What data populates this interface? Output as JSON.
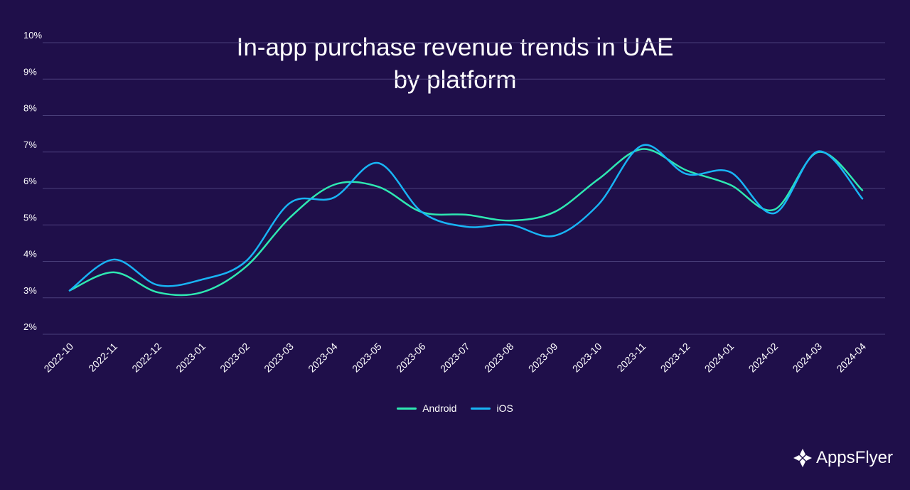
{
  "chart_data": {
    "type": "line",
    "title": [
      "In-app purchase revenue trends in UAE",
      "by platform"
    ],
    "xlabel": "",
    "ylabel": "",
    "categories": [
      "2022-10",
      "2022-11",
      "2022-12",
      "2023-01",
      "2023-02",
      "2023-03",
      "2023-04",
      "2023-05",
      "2023-06",
      "2023-07",
      "2023-08",
      "2023-09",
      "2023-10",
      "2023-11",
      "2023-12",
      "2024-01",
      "2024-02",
      "2024-03",
      "2024-04"
    ],
    "ylim": [
      2,
      10
    ],
    "yticks": [
      2,
      3,
      4,
      5,
      6,
      7,
      8,
      9,
      10
    ],
    "ytick_suffix": "%",
    "grid": true,
    "legend_position": "bottom-center",
    "series": [
      {
        "name": "Android",
        "color": "#2ee8b2",
        "values": [
          3.2,
          3.7,
          3.15,
          3.15,
          3.85,
          5.2,
          6.1,
          6.05,
          5.35,
          5.28,
          5.12,
          5.35,
          6.25,
          7.08,
          6.5,
          6.1,
          5.42,
          7.0,
          5.95
        ]
      },
      {
        "name": "iOS",
        "color": "#18b4f5",
        "values": [
          3.2,
          4.05,
          3.35,
          3.5,
          4.0,
          5.6,
          5.75,
          6.7,
          5.35,
          4.95,
          5.0,
          4.7,
          5.55,
          7.18,
          6.4,
          6.45,
          5.32,
          7.02,
          5.72
        ]
      }
    ]
  },
  "legend": {
    "android": "Android",
    "ios": "iOS"
  },
  "brand": {
    "name": "AppsFlyer",
    "logo_icon": "appsflyer-bird-icon"
  }
}
